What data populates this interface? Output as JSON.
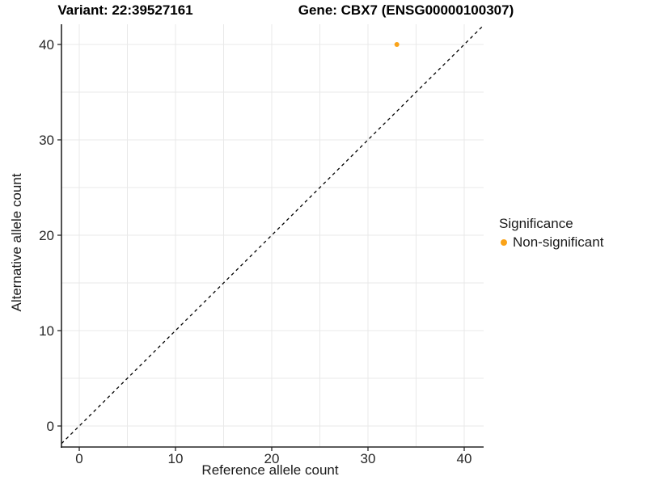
{
  "chart_data": {
    "type": "scatter",
    "titles": {
      "left": "Variant: 22:39527161",
      "right": "Gene: CBX7 (ENSG00000100307)"
    },
    "xlabel": "Reference allele count",
    "ylabel": "Alternative allele count",
    "xlim": [
      -2.1,
      42.1
    ],
    "ylim": [
      -2.1,
      42.1
    ],
    "xticks": [
      0,
      10,
      20,
      30,
      40
    ],
    "yticks": [
      0,
      10,
      20,
      30,
      40
    ],
    "grid": {
      "show": true,
      "interval": 5,
      "color": "#E9E9E9"
    },
    "axis": {
      "color": "#262626",
      "tick_length": 5
    },
    "reference_line": {
      "equation": "y = x",
      "style": "dashed",
      "color": "#000000"
    },
    "series": [
      {
        "name": "Non-significant",
        "color": "#FAA319",
        "marker": "circle",
        "point_radius": 3,
        "points": [
          {
            "x": 33,
            "y": 40
          }
        ]
      }
    ],
    "legend": {
      "title": "Significance",
      "position": "right",
      "items": [
        {
          "label": "Non-significant",
          "color": "#FAA319",
          "swatch": "dot"
        }
      ]
    }
  }
}
